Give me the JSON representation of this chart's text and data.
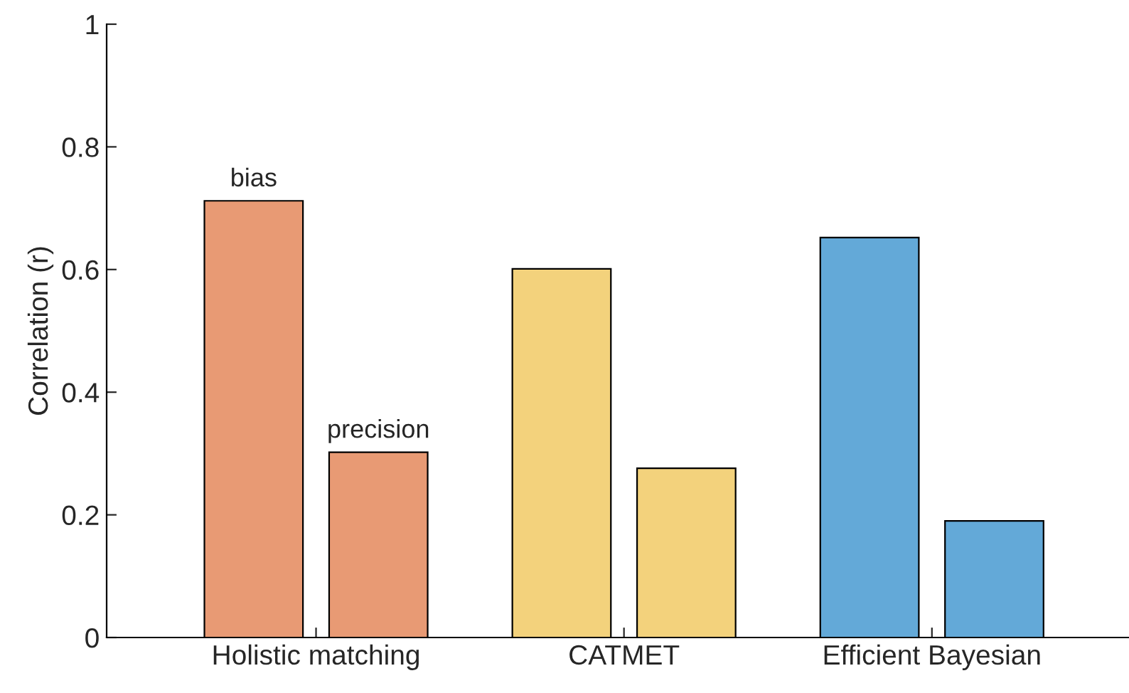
{
  "chart_data": {
    "type": "bar",
    "ylabel": "Correlation (r)",
    "categories": [
      "Holistic matching",
      "CATMET",
      "Efficient Bayesian"
    ],
    "series": [
      {
        "name": "bias",
        "colors": [
          "#e89a74",
          "#f3d27c",
          "#63a9d8"
        ],
        "values": [
          0.712,
          0.601,
          0.652
        ]
      },
      {
        "name": "precision",
        "colors": [
          "#e89a74",
          "#f3d27c",
          "#63a9d8"
        ],
        "values": [
          0.302,
          0.276,
          0.19
        ]
      }
    ],
    "ylim": [
      0,
      1
    ],
    "yticks": [
      0,
      0.2,
      0.4,
      0.6,
      0.8,
      1
    ],
    "grid": false,
    "legend": false
  }
}
